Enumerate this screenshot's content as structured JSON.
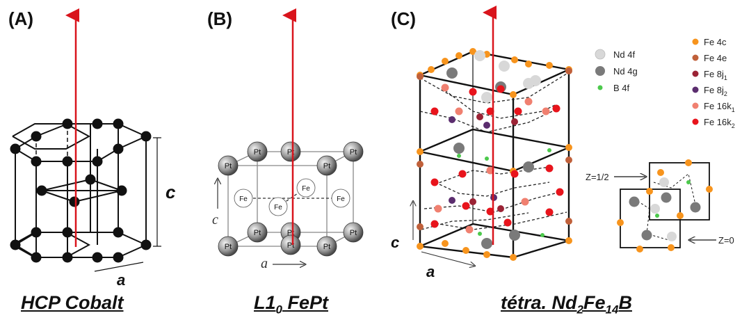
{
  "panels": {
    "a": {
      "label": "(A)",
      "caption_main": "HCP  Cobalt",
      "axis_c": "c",
      "axis_a": "a"
    },
    "b": {
      "label": "(B)",
      "caption_main": "L1",
      "caption_sub": "0",
      "caption_tail": " FePt",
      "atom_pt": "Pt",
      "atom_fe": "Fe",
      "axis_c": "c",
      "axis_a": "a"
    },
    "c": {
      "label": "(C)",
      "caption_parts": [
        "tétra. Nd",
        "2",
        "Fe",
        "14",
        "B"
      ],
      "axis_c": "c",
      "axis_a": "a",
      "z_half": "Z=1/2",
      "z_zero": "Z=0"
    }
  },
  "legend_left": [
    {
      "text": "Nd 4f",
      "color": "#d8d8d8"
    },
    {
      "text": "Nd 4g",
      "color": "#7a7a7a"
    },
    {
      "text": "B 4f",
      "color": "#4cc94c"
    }
  ],
  "legend_right": [
    {
      "text": "Fe 4c",
      "sub": "",
      "color": "#f7941d"
    },
    {
      "text": "Fe 4e",
      "sub": "",
      "color": "#c0603a"
    },
    {
      "text": "Fe 8j",
      "sub": "1",
      "color": "#9b2335"
    },
    {
      "text": "Fe 8j",
      "sub": "2",
      "color": "#5b2d6e"
    },
    {
      "text": "Fe 16k",
      "sub": "1",
      "color": "#f08070"
    },
    {
      "text": "Fe 16k",
      "sub": "2",
      "color": "#e8141c"
    }
  ],
  "arrow_color": "#d9141c"
}
